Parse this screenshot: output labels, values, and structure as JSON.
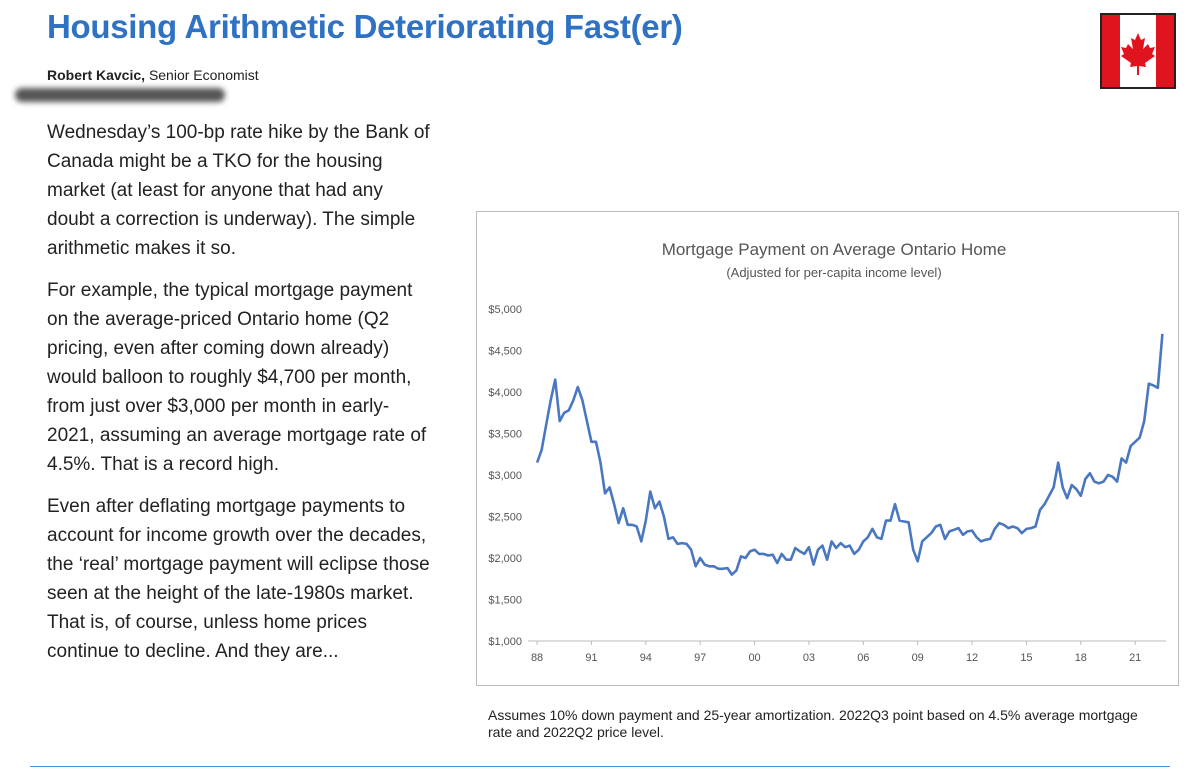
{
  "header": {
    "title": "Housing Arithmetic Deteriorating Fast(er)",
    "author": "Robert Kavcic,",
    "role": "Senior Economist"
  },
  "body": {
    "paragraphs": [
      "Wednesday’s 100-bp rate hike by the Bank of Canada might be a TKO for the housing market (at least for anyone that had any doubt a correction is underway). The simple arithmetic makes it so.",
      "For example, the typical mortgage payment on the average-priced Ontario home (Q2 pricing, even after coming down already) would balloon to roughly $4,700 per month, from just over $3,000 per month in early-2021, assuming an average mortgage rate of 4.5%. That is a record high.",
      "Even after deflating mortgage payments to account for income growth over the decades, the ‘real’ mortgage payment will eclipse those seen at the height of the late-1980s market. That is, of course, unless home prices continue to decline. And they are..."
    ]
  },
  "footnote": "Assumes 10% down payment and 25-year amortization. 2022Q3 point based on 4.5% average mortgage rate and 2022Q2 price level.",
  "chart_data": {
    "type": "line",
    "title": "Mortgage Payment on Average Ontario Home",
    "subtitle": "(Adjusted for per-capita income level)",
    "color": "#4a78c0",
    "x": [
      1988,
      1988.25,
      1988.5,
      1988.75,
      1989,
      1989.25,
      1989.5,
      1989.75,
      1990,
      1990.25,
      1990.5,
      1990.75,
      1991,
      1991.25,
      1991.5,
      1991.75,
      1992,
      1992.25,
      1992.5,
      1992.75,
      1993,
      1993.25,
      1993.5,
      1993.75,
      1994,
      1994.25,
      1994.5,
      1994.75,
      1995,
      1995.25,
      1995.5,
      1995.75,
      1996,
      1996.25,
      1996.5,
      1996.75,
      1997,
      1997.25,
      1997.5,
      1997.75,
      1998,
      1998.25,
      1998.5,
      1998.75,
      1999,
      1999.25,
      1999.5,
      1999.75,
      2000,
      2000.25,
      2000.5,
      2000.75,
      2001,
      2001.25,
      2001.5,
      2001.75,
      2002,
      2002.25,
      2002.5,
      2002.75,
      2003,
      2003.25,
      2003.5,
      2003.75,
      2004,
      2004.25,
      2004.5,
      2004.75,
      2005,
      2005.25,
      2005.5,
      2005.75,
      2006,
      2006.25,
      2006.5,
      2006.75,
      2007,
      2007.25,
      2007.5,
      2007.75,
      2008,
      2008.25,
      2008.5,
      2008.75,
      2009,
      2009.25,
      2009.5,
      2009.75,
      2010,
      2010.25,
      2010.5,
      2010.75,
      2011,
      2011.25,
      2011.5,
      2011.75,
      2012,
      2012.25,
      2012.5,
      2012.75,
      2013,
      2013.25,
      2013.5,
      2013.75,
      2014,
      2014.25,
      2014.5,
      2014.75,
      2015,
      2015.25,
      2015.5,
      2015.75,
      2016,
      2016.25,
      2016.5,
      2016.75,
      2017,
      2017.25,
      2017.5,
      2017.75,
      2018,
      2018.25,
      2018.5,
      2018.75,
      2019,
      2019.25,
      2019.5,
      2019.75,
      2020,
      2020.25,
      2020.5,
      2020.75,
      2021,
      2021.25,
      2021.5,
      2021.75,
      2022,
      2022.25,
      2022.5
    ],
    "values": [
      3150,
      3300,
      3600,
      3900,
      4150,
      3650,
      3750,
      3780,
      3900,
      4060,
      3900,
      3650,
      3400,
      3400,
      3150,
      2780,
      2850,
      2650,
      2420,
      2600,
      2400,
      2400,
      2380,
      2200,
      2450,
      2800,
      2600,
      2680,
      2500,
      2230,
      2250,
      2170,
      2180,
      2170,
      2100,
      1900,
      2000,
      1920,
      1900,
      1900,
      1870,
      1870,
      1880,
      1800,
      1850,
      2020,
      2000,
      2080,
      2100,
      2050,
      2050,
      2030,
      2040,
      1940,
      2050,
      1980,
      1980,
      2120,
      2080,
      2050,
      2130,
      1920,
      2100,
      2150,
      1980,
      2200,
      2120,
      2180,
      2130,
      2150,
      2050,
      2100,
      2200,
      2250,
      2350,
      2250,
      2230,
      2450,
      2450,
      2650,
      2450,
      2440,
      2430,
      2100,
      1960,
      2200,
      2250,
      2300,
      2380,
      2400,
      2230,
      2320,
      2340,
      2360,
      2280,
      2320,
      2330,
      2250,
      2200,
      2220,
      2230,
      2350,
      2420,
      2400,
      2360,
      2380,
      2360,
      2300,
      2350,
      2360,
      2380,
      2580,
      2650,
      2750,
      2850,
      3150,
      2850,
      2720,
      2880,
      2830,
      2750,
      2950,
      3020,
      2920,
      2900,
      2920,
      3000,
      2980,
      2920,
      3200,
      3150,
      3350,
      3400,
      3450,
      3650,
      4100,
      4080,
      4050,
      4700
    ],
    "xlim": [
      1987.5,
      2022.7
    ],
    "xticks": [
      {
        "value": 1988,
        "label": "88"
      },
      {
        "value": 1991,
        "label": "91"
      },
      {
        "value": 1994,
        "label": "94"
      },
      {
        "value": 1997,
        "label": "97"
      },
      {
        "value": 2000,
        "label": "00"
      },
      {
        "value": 2003,
        "label": "03"
      },
      {
        "value": 2006,
        "label": "06"
      },
      {
        "value": 2009,
        "label": "09"
      },
      {
        "value": 2012,
        "label": "12"
      },
      {
        "value": 2015,
        "label": "15"
      },
      {
        "value": 2018,
        "label": "18"
      },
      {
        "value": 2021,
        "label": "21"
      }
    ],
    "ylim": [
      1000,
      5000
    ],
    "yticks": [
      {
        "value": 1000,
        "label": "$1,000"
      },
      {
        "value": 1500,
        "label": "$1,500"
      },
      {
        "value": 2000,
        "label": "$2,000"
      },
      {
        "value": 2500,
        "label": "$2,500"
      },
      {
        "value": 3000,
        "label": "$3,000"
      },
      {
        "value": 3500,
        "label": "$3,500"
      },
      {
        "value": 4000,
        "label": "$4,000"
      },
      {
        "value": 4500,
        "label": "$4,500"
      },
      {
        "value": 5000,
        "label": "$5,000"
      }
    ]
  }
}
